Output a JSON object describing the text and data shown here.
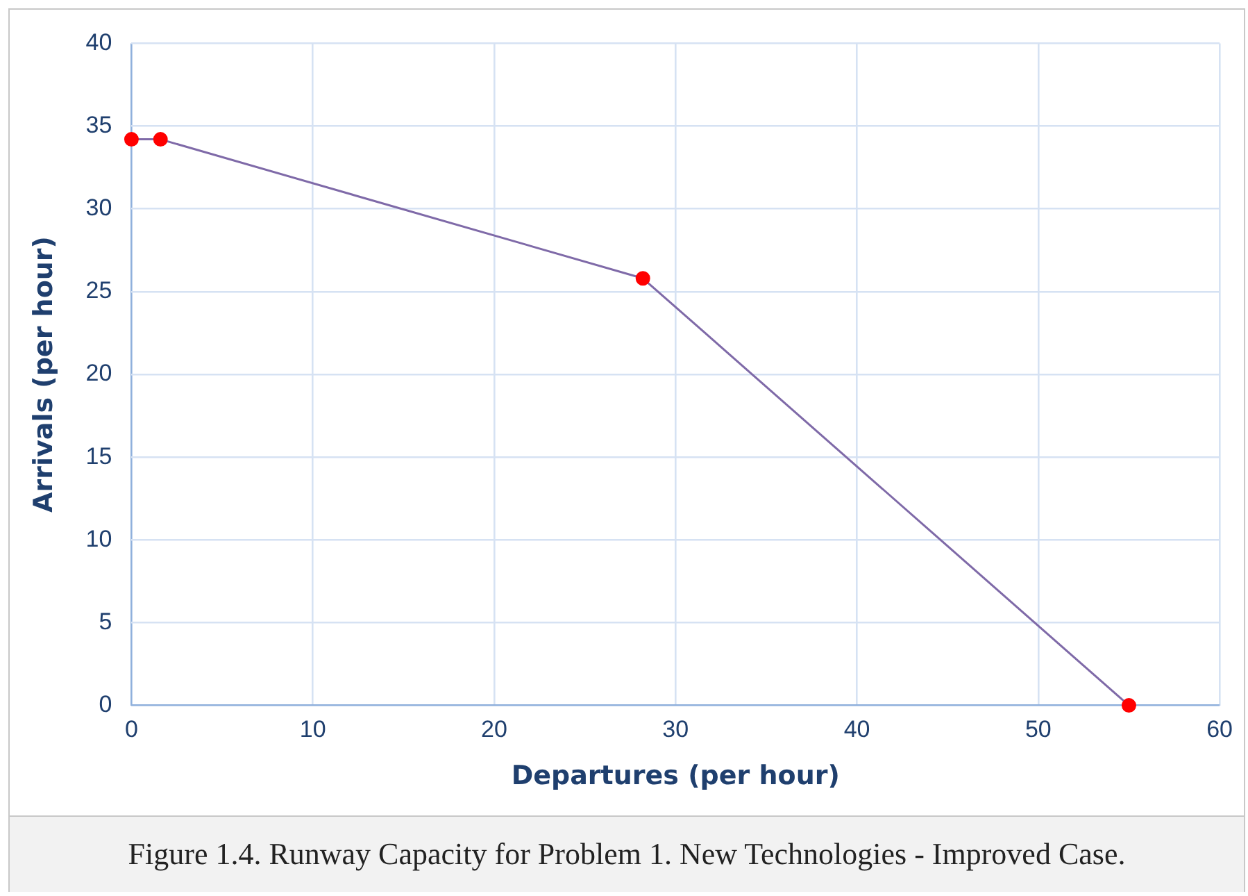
{
  "chart_data": {
    "type": "line",
    "xlabel": "Departures (per hour)",
    "ylabel": "Arrivals (per hour)",
    "x": [
      0,
      1.6,
      28.2,
      55
    ],
    "series": [
      {
        "color": "#7f6aa8",
        "colors": [
          "#ff0000",
          "#ff0000",
          "#ff0000",
          "#ff0000"
        ],
        "values": [
          34.2,
          34.2,
          25.8,
          0
        ]
      }
    ],
    "xlim": [
      0,
      60
    ],
    "xticks": [
      0,
      10,
      20,
      30,
      40,
      50,
      60
    ],
    "ylim": [
      0,
      40
    ],
    "yticks": [
      0,
      5,
      10,
      15,
      20,
      25,
      30,
      35,
      40
    ],
    "grid": true,
    "legend": false,
    "marker": "circle",
    "line_style": "solid",
    "annotations": [
      "Figure 1.4. Runway Capacity for Problem 1. New Technologies - Improved Case."
    ]
  }
}
